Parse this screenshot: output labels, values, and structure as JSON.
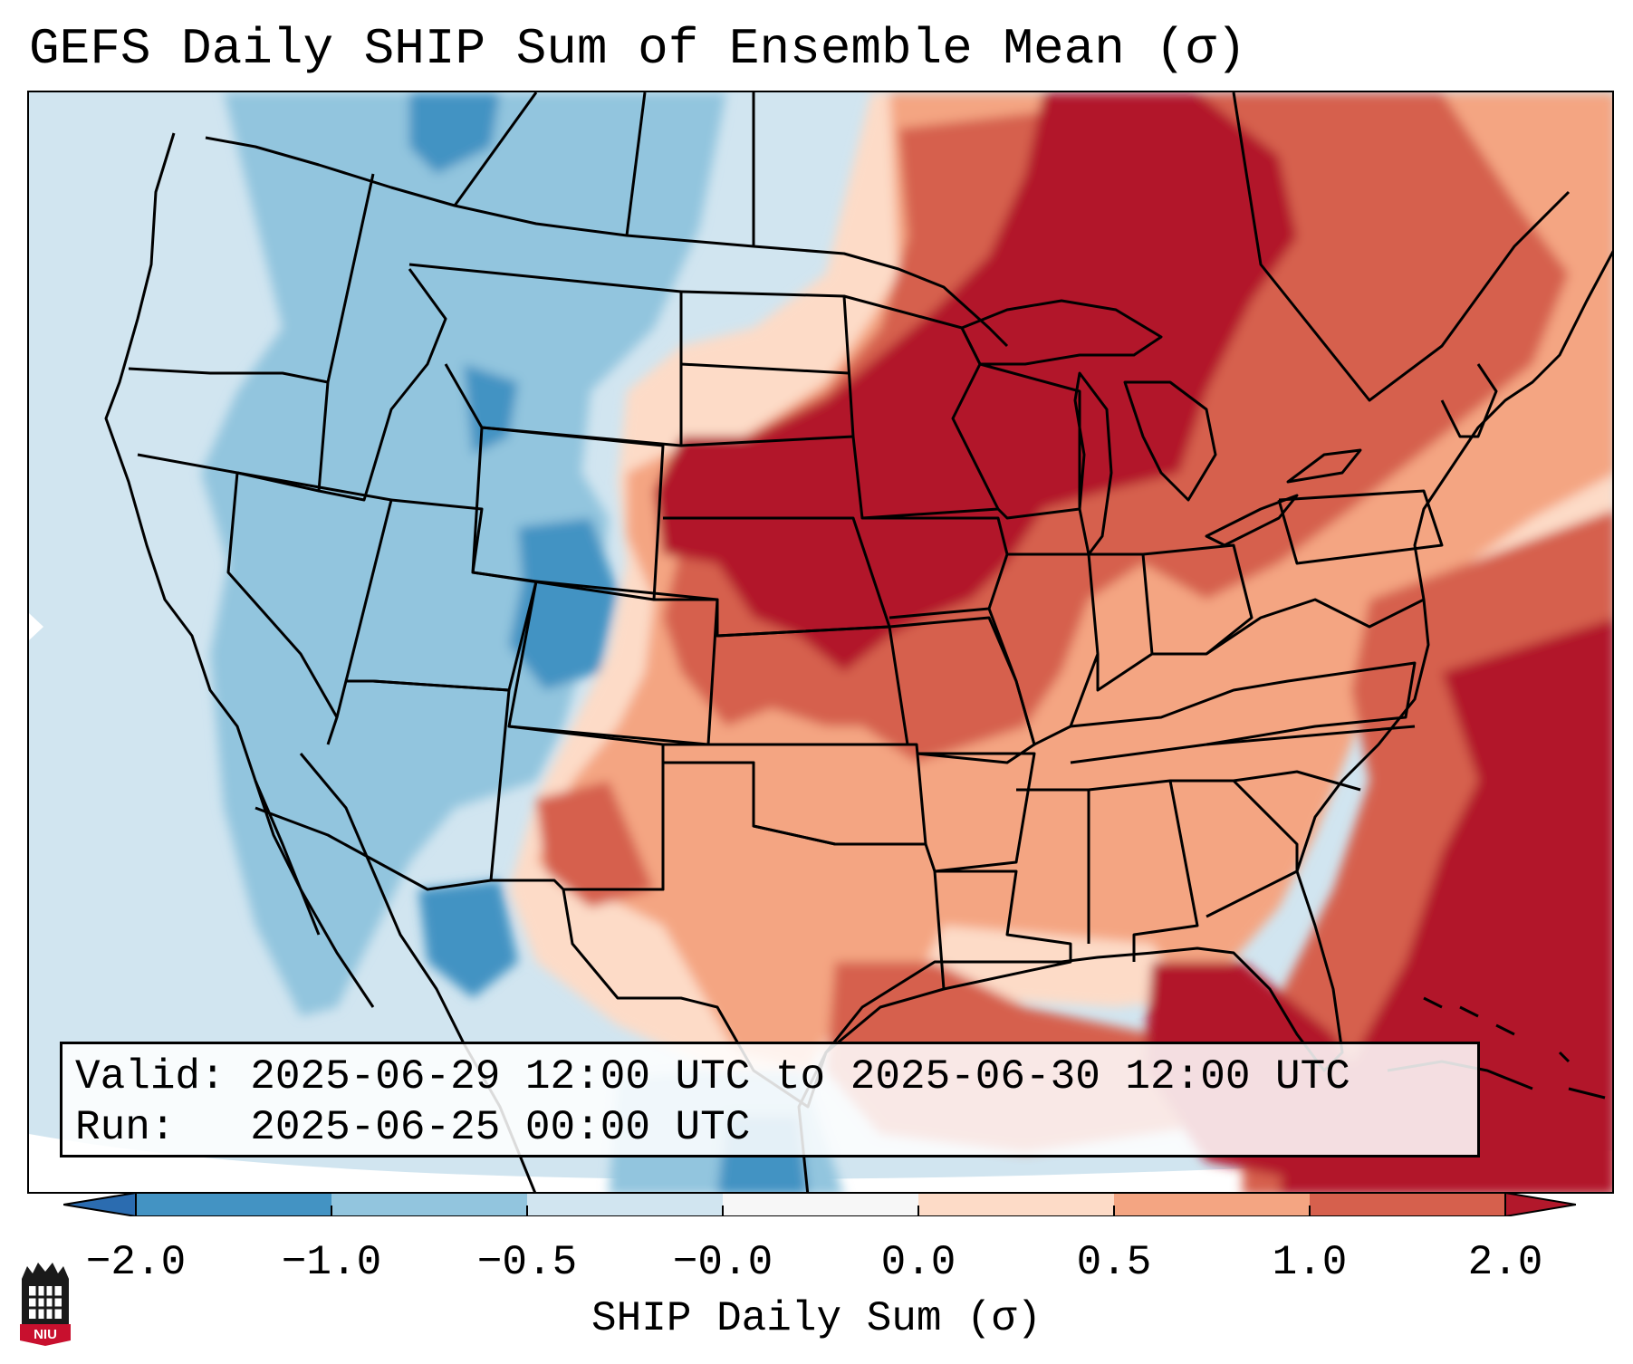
{
  "title": "GEFS Daily SHIP Sum of Ensemble Mean (σ)",
  "info": {
    "valid_label": "Valid:",
    "valid_value": "2025-06-29 12:00 UTC to 2025-06-30 12:00 UTC",
    "run_label": "Run:",
    "run_value": "2025-06-25 00:00 UTC"
  },
  "colorbar": {
    "label": "SHIP Daily Sum (σ)",
    "ticks": [
      "−2.0",
      "−1.0",
      "−0.5",
      "−0.0",
      "0.0",
      "0.5",
      "1.0",
      "2.0"
    ],
    "colors": [
      "#2b6cb0",
      "#4393c3",
      "#92c5de",
      "#d1e5f0",
      "#f7f7f7",
      "#fddbc7",
      "#f4a582",
      "#d6604d",
      "#b2182b"
    ]
  },
  "legend_colors": {
    "strong_negative": "#4393c3",
    "negative": "#92c5de",
    "weak_negative": "#d1e5f0",
    "weak_positive": "#fddbc7",
    "positive": "#f4a582",
    "strong_positive": "#d6604d",
    "very_strong_positive": "#b2182b"
  },
  "logo": {
    "text": "NIU",
    "icon": "niu-logo-icon"
  }
}
